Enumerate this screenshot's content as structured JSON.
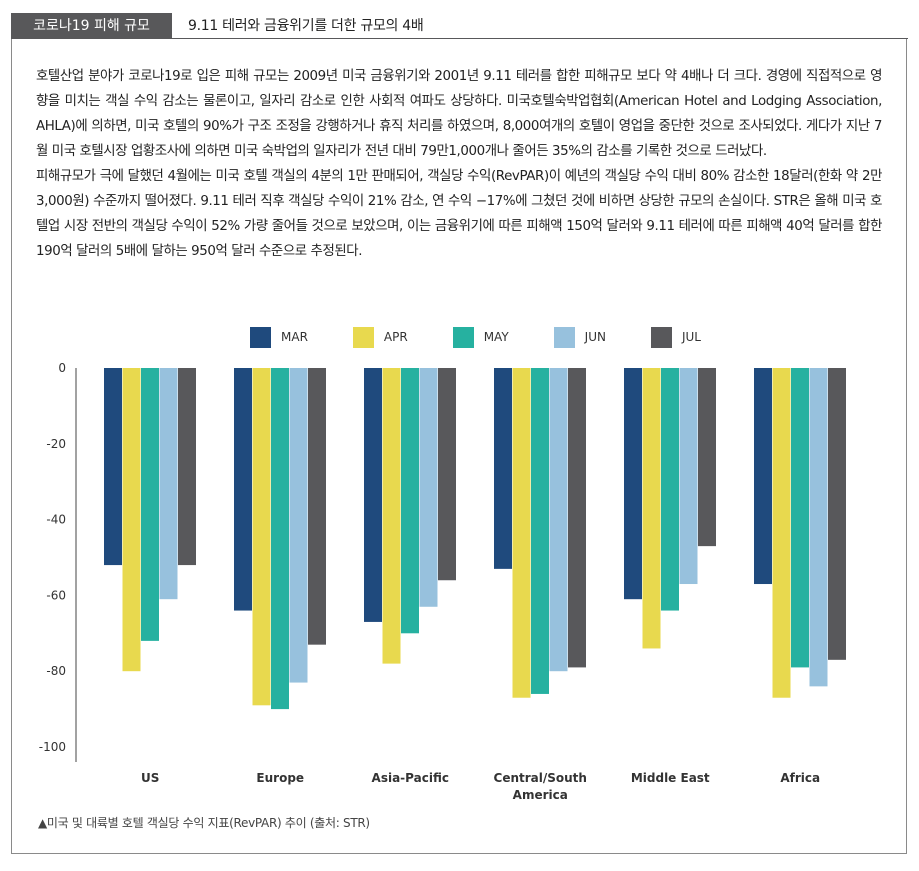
{
  "header": {
    "tag": "코로나19 피해 규모",
    "title": "9.11 테러와 금융위기를 더한 규모의 4배"
  },
  "article": {
    "paragraph1": "호텔산업 분야가 코로나19로 입은 피해 규모는 2009년 미국 금융위기와 2001년 9.11 테러를 합한 피해규모 보다 약 4배나 더 크다. 경영에 직접적으로 영향을 미치는 객실 수익 감소는 물론이고, 일자리 감소로 인한 사회적 여파도 상당하다. 미국호텔숙박업협회(American Hotel and Lodging Association, AHLA)에 의하면, 미국 호텔의 90%가 구조 조정을 강행하거나 휴직 처리를 하였으며, 8,000여개의 호텔이 영업을 중단한 것으로 조사되었다. 게다가 지난 7월 미국 호텔시장 업황조사에 의하면 미국 숙박업의 일자리가 전년 대비 79만1,000개나 줄어든 35%의 감소를 기록한 것으로 드러났다.",
    "paragraph2": "피해규모가 극에 달했던 4월에는 미국 호텔 객실의 4분의 1만 판매되어, 객실당 수익(RevPAR)이 예년의 객실당 수익 대비 80% 감소한 18달러(한화 약 2만3,000원) 수준까지 떨어졌다. 9.11 테러 직후 객실당 수익이 21% 감소, 연 수익 −17%에 그쳤던 것에 비하면 상당한 규모의 손실이다. STR은 올해 미국 호텔업 시장 전반의 객실당 수익이 52% 가량 줄어들 것으로 보았으며, 이는 금융위기에 따른 피해액 150억 달러와 9.11 테러에 따른 피해액 40억 달러를 합한 190억 달러의 5배에 달하는 950억 달러 수준으로 추정된다."
  },
  "caption": "▲미국 및 대륙별 호텔 객실당 수익 지표(RevPAR) 추이 (출처: STR)",
  "colors": {
    "MAR": "#1f4a7d",
    "APR": "#e8d94e",
    "MAY": "#26b1a0",
    "JUN": "#97c1dd",
    "JUL": "#58585b"
  },
  "chart_data": {
    "type": "bar",
    "categories": [
      "US",
      "Europe",
      "Asia-Pacific",
      "Central/South America",
      "Middle East",
      "Africa"
    ],
    "series": [
      {
        "name": "MAR",
        "values": [
          -52,
          -64,
          -67,
          -53,
          -61,
          -57
        ]
      },
      {
        "name": "APR",
        "values": [
          -80,
          -89,
          -78,
          -87,
          -74,
          -87
        ]
      },
      {
        "name": "MAY",
        "values": [
          -72,
          -90,
          -70,
          -86,
          -64,
          -79
        ]
      },
      {
        "name": "JUN",
        "values": [
          -61,
          -83,
          -63,
          -80,
          -57,
          -84
        ]
      },
      {
        "name": "JUL",
        "values": [
          -52,
          -73,
          -56,
          -79,
          -47,
          -77
        ]
      }
    ],
    "yticks": [
      0,
      -20,
      -40,
      -60,
      -80,
      -100
    ],
    "ylim": [
      -100,
      0
    ],
    "legend_position": "top",
    "grid": false
  }
}
